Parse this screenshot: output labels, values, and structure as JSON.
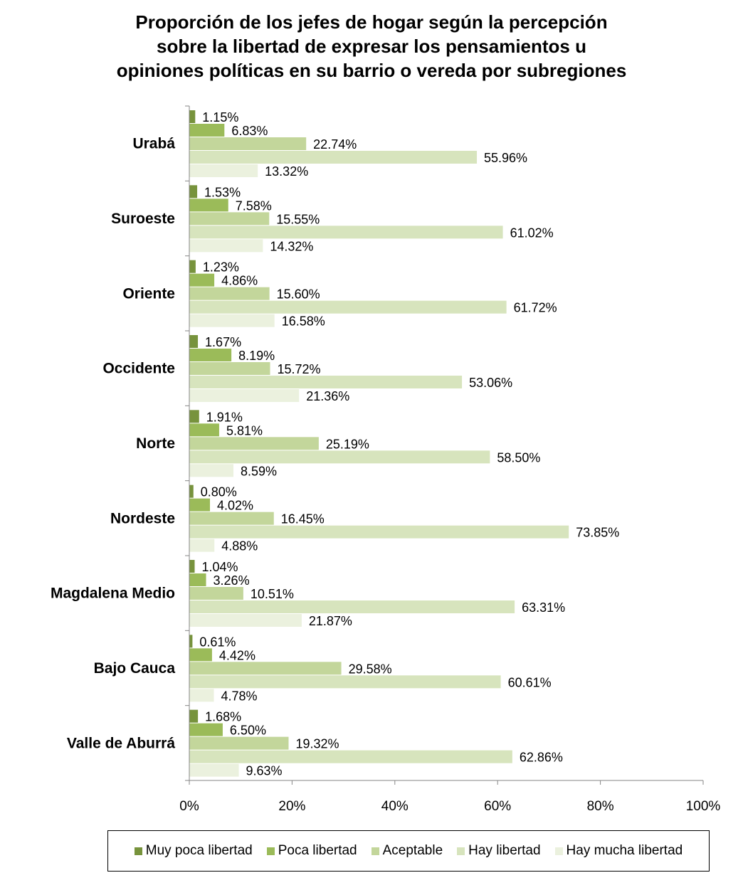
{
  "chart_data": {
    "type": "bar",
    "orientation": "horizontal",
    "title_lines": [
      "Proporción de los jefes de hogar  según la percepción",
      "sobre la libertad de expresar los pensamientos u",
      "opiniones políticas en su barrio o vereda por subregiones"
    ],
    "categories": [
      "Urabá",
      "Suroeste",
      "Oriente",
      "Occidente",
      "Norte",
      "Nordeste",
      "Magdalena Medio",
      "Bajo Cauca",
      "Valle de Aburrá"
    ],
    "series": [
      {
        "name": "Muy poca libertad",
        "color": "#77933c",
        "values": [
          1.15,
          1.53,
          1.23,
          1.67,
          1.91,
          0.8,
          1.04,
          0.61,
          1.68
        ]
      },
      {
        "name": "Poca libertad",
        "color": "#9bbb59",
        "values": [
          6.83,
          7.58,
          4.86,
          8.19,
          5.81,
          4.02,
          3.26,
          4.42,
          6.5
        ]
      },
      {
        "name": "Aceptable",
        "color": "#c3d69b",
        "values": [
          22.74,
          15.55,
          15.6,
          15.72,
          25.19,
          16.45,
          10.51,
          29.58,
          19.32
        ]
      },
      {
        "name": "Hay libertad",
        "color": "#d7e4bd",
        "values": [
          55.96,
          61.02,
          61.72,
          53.06,
          58.5,
          73.85,
          63.31,
          60.61,
          62.86
        ]
      },
      {
        "name": "Hay mucha libertad",
        "color": "#ebf1de",
        "values": [
          13.32,
          14.32,
          16.58,
          21.36,
          8.59,
          4.88,
          21.87,
          4.78,
          9.63
        ]
      }
    ],
    "value_labels": [
      [
        "1.15%",
        "6.83%",
        "22.74%",
        "55.96%",
        "13.32%"
      ],
      [
        "1.53%",
        "7.58%",
        "15.55%",
        "61.02%",
        "14.32%"
      ],
      [
        "1.23%",
        "4.86%",
        "15.60%",
        "61.72%",
        "16.58%"
      ],
      [
        "1.67%",
        "8.19%",
        "15.72%",
        "53.06%",
        "21.36%"
      ],
      [
        "1.91%",
        "5.81%",
        "25.19%",
        "58.50%",
        "8.59%"
      ],
      [
        "0.80%",
        "4.02%",
        "16.45%",
        "73.85%",
        "4.88%"
      ],
      [
        "1.04%",
        "3.26%",
        "10.51%",
        "63.31%",
        "21.87%"
      ],
      [
        "0.61%",
        "4.42%",
        "29.58%",
        "60.61%",
        "4.78%"
      ],
      [
        "1.68%",
        "6.50%",
        "19.32%",
        "62.86%",
        "9.63%"
      ]
    ],
    "x_ticks": [
      "0%",
      "20%",
      "40%",
      "60%",
      "80%",
      "100%"
    ],
    "xlim": [
      0,
      100
    ],
    "xlabel": "",
    "ylabel": "",
    "grid": false,
    "legend_position": "bottom"
  }
}
